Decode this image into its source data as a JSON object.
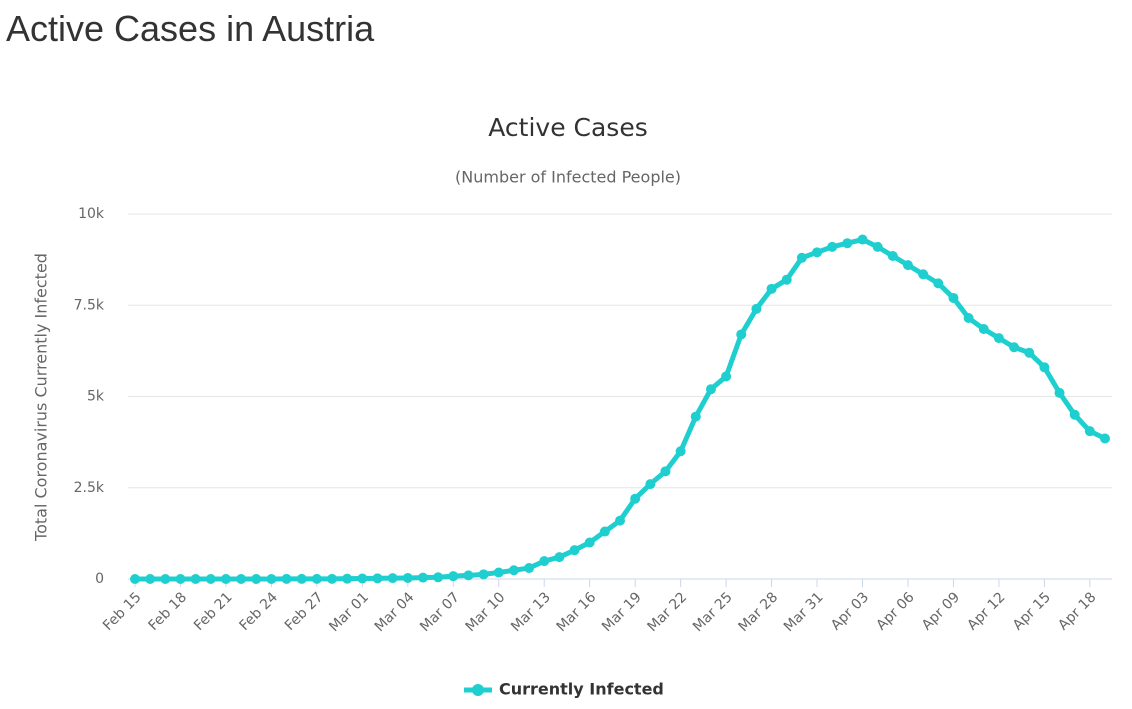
{
  "heading": "Active Cases in Austria",
  "chart_data": {
    "type": "line",
    "title": "Active Cases",
    "subtitle": "(Number of Infected People)",
    "y_label": "Total Coronavirus Currently Infected",
    "categories": [
      "Feb 15",
      null,
      null,
      "Feb 18",
      null,
      null,
      "Feb 21",
      null,
      null,
      "Feb 24",
      null,
      null,
      "Feb 27",
      null,
      null,
      "Mar 01",
      null,
      null,
      "Mar 04",
      null,
      null,
      "Mar 07",
      null,
      null,
      "Mar 10",
      null,
      null,
      "Mar 13",
      null,
      null,
      "Mar 16",
      null,
      null,
      "Mar 19",
      null,
      null,
      "Mar 22",
      null,
      null,
      "Mar 25",
      null,
      null,
      "Mar 28",
      null,
      null,
      "Mar 31",
      null,
      null,
      "Apr 03",
      null,
      null,
      "Apr 06",
      null,
      null,
      "Apr 09",
      null,
      null,
      "Apr 12",
      null,
      null,
      "Apr 15",
      null,
      null,
      "Apr 18",
      null
    ],
    "series": [
      {
        "name": "Currently Infected",
        "color": "#1fcfd0",
        "values": [
          0,
          0,
          0,
          0,
          0,
          0,
          0,
          0,
          0,
          0,
          2,
          2,
          3,
          3,
          9,
          14,
          18,
          24,
          29,
          37,
          47,
          78,
          100,
          128,
          178,
          240,
          300,
          490,
          600,
          790,
          1000,
          1300,
          1600,
          2200,
          2600,
          2950,
          3500,
          4450,
          5200,
          5550,
          6700,
          7400,
          7950,
          8200,
          8800,
          8950,
          9100,
          9200,
          9300,
          9100,
          8850,
          8600,
          8350,
          8100,
          7700,
          7150,
          6850,
          6600,
          6350,
          6200,
          5800,
          5100,
          4500,
          4050,
          3850
        ]
      }
    ],
    "ylim": [
      0,
      10000
    ],
    "yticks": [
      0,
      {
        "value": 2500,
        "label": "2.5k"
      },
      {
        "value": 5000,
        "label": "5k"
      },
      {
        "value": 7500,
        "label": "7.5k"
      },
      {
        "value": 10000,
        "label": "10k"
      }
    ],
    "grid": true,
    "legend": "bottom"
  }
}
